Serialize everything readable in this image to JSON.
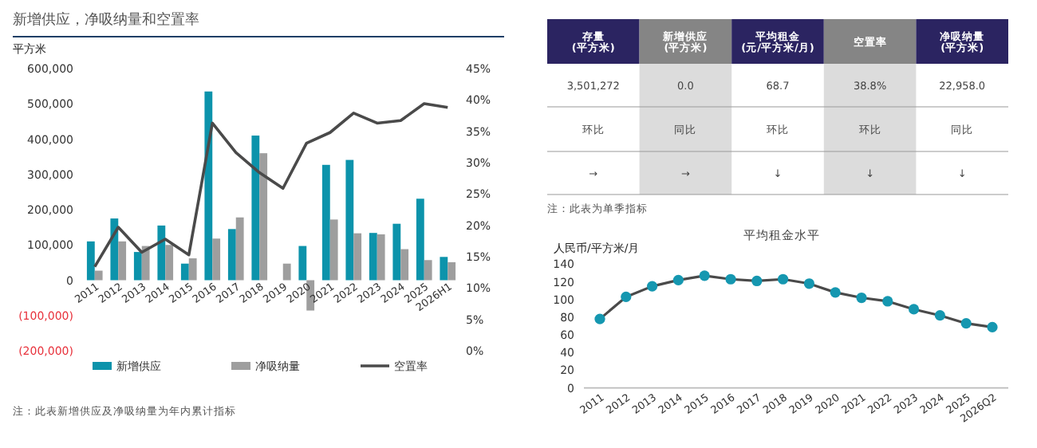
{
  "chart_data": [
    {
      "type": "bar",
      "title": "新增供应，净吸纳量和空置率",
      "ylabel": "平方米",
      "categories": [
        "2011",
        "2012",
        "2013",
        "2014",
        "2015",
        "2016",
        "2017",
        "2018",
        "2019",
        "2020",
        "2021",
        "2022",
        "2023",
        "2024",
        "2025",
        "2026H1"
      ],
      "series": [
        {
          "name": "新增供应",
          "color": "#0c93ab",
          "values": [
            110000,
            175000,
            80000,
            155000,
            47000,
            535000,
            145000,
            410000,
            0,
            97000,
            327000,
            341000,
            134000,
            160000,
            231000,
            66000
          ]
        },
        {
          "name": "净吸纳量",
          "color": "#9e9e9e",
          "values": [
            27000,
            110000,
            97000,
            100000,
            62000,
            118000,
            178000,
            360000,
            47000,
            -86000,
            172000,
            133000,
            130000,
            88000,
            57000,
            51000
          ]
        },
        {
          "name": "空置率",
          "type": "line",
          "axis": "y2",
          "color": "#4a4a4a",
          "values": [
            13.4,
            19.7,
            15.7,
            17.8,
            15.3,
            36.3,
            31.6,
            28.4,
            25.9,
            33.1,
            34.8,
            37.9,
            36.3,
            36.7,
            39.4,
            38.8
          ]
        }
      ],
      "ylim": [
        -200000,
        600000
      ],
      "yticks": [
        {
          "value": -200000,
          "label": "(200,000)"
        },
        {
          "value": -100000,
          "label": "(100,000)"
        },
        {
          "value": 0,
          "label": "0"
        },
        {
          "value": 100000,
          "label": "100,000"
        },
        {
          "value": 200000,
          "label": "200,000"
        },
        {
          "value": 300000,
          "label": "300,000"
        },
        {
          "value": 400000,
          "label": "400,000"
        },
        {
          "value": 500000,
          "label": "500,000"
        },
        {
          "value": 600000,
          "label": "600,000"
        }
      ],
      "y2lim": [
        0,
        45
      ],
      "y2ticks": [
        {
          "value": 0,
          "label": "0%"
        },
        {
          "value": 5,
          "label": "5%"
        },
        {
          "value": 10,
          "label": "10%"
        },
        {
          "value": 15,
          "label": "15%"
        },
        {
          "value": 20,
          "label": "20%"
        },
        {
          "value": 25,
          "label": "25%"
        },
        {
          "value": 30,
          "label": "30%"
        },
        {
          "value": 35,
          "label": "35%"
        },
        {
          "value": 40,
          "label": "40%"
        },
        {
          "value": 45,
          "label": "45%"
        }
      ],
      "legend": "bottom",
      "grid": false,
      "annotations": [
        "注：此表新增供应及净吸纳量为年内累计指标"
      ]
    },
    {
      "type": "other",
      "categories": [
        "存量\n(平方米)",
        "新增供应\n(平方米)",
        "平均租金\n(元/平方米/月)",
        "空置率",
        "净吸纳量\n(平方米)"
      ],
      "colors": [
        "#2b2461",
        "#858585",
        "#2b2461",
        "#858585",
        "#2b2461"
      ],
      "cell_labels": [
        [
          "3,501,272",
          "0.0",
          "68.7",
          "38.8%",
          "22,958.0"
        ],
        [
          "环比",
          "同比",
          "环比",
          "环比",
          "同比"
        ],
        [
          "→",
          "→",
          "↓",
          "↓",
          "↓"
        ]
      ],
      "annotations": [
        "注：此表为单季指标"
      ]
    },
    {
      "type": "line",
      "title": "平均租金水平",
      "ylabel": "人民币/平方米/月",
      "categories": [
        "2011",
        "2012",
        "2013",
        "2014",
        "2015",
        "2016",
        "2017",
        "2018",
        "2019",
        "2020",
        "2021",
        "2022",
        "2023",
        "2024",
        "2025",
        "2026Q2"
      ],
      "series": [
        {
          "color": "#1597b0",
          "values": [
            78,
            103,
            115,
            122,
            127,
            123,
            121,
            123,
            118,
            108,
            102,
            98,
            89,
            82,
            73,
            68.7
          ]
        }
      ],
      "ylim": [
        0,
        140
      ],
      "yticks": [
        0,
        20,
        40,
        60,
        80,
        100,
        120,
        140
      ],
      "marker": "circle",
      "grid": false
    }
  ]
}
